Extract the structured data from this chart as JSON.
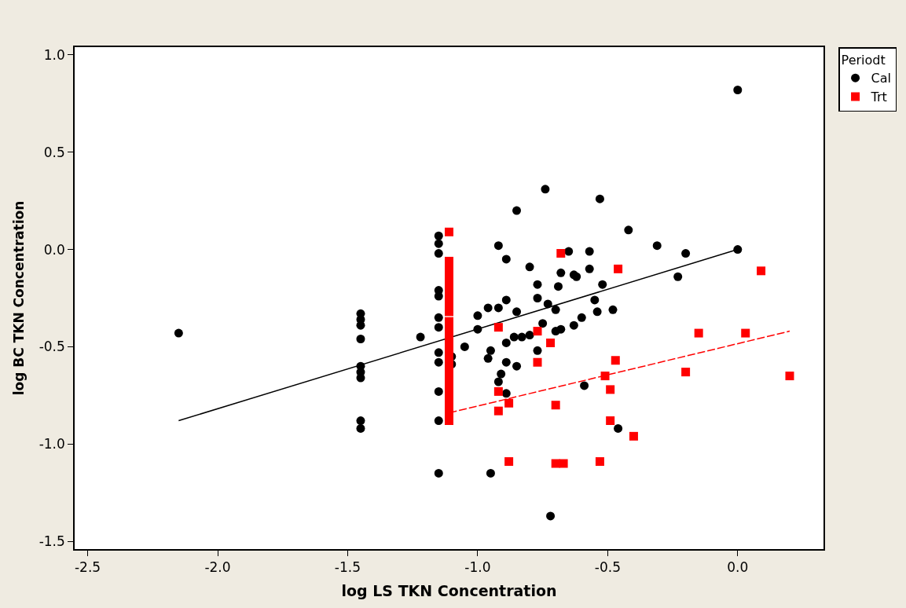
{
  "chart_data": {
    "type": "scatter",
    "xlabel": "log LS TKN Concentration",
    "ylabel": "log BC TKN Concentration",
    "legend_title": "Periodt",
    "xlim": [
      -2.55,
      0.33
    ],
    "ylim": [
      -1.54,
      1.04
    ],
    "xticks": [
      {
        "value": -2.5,
        "label": "-2.5"
      },
      {
        "value": -2.0,
        "label": "-2.0"
      },
      {
        "value": -1.5,
        "label": "-1.5"
      },
      {
        "value": -1.0,
        "label": "-1.0"
      },
      {
        "value": -0.5,
        "label": "-0.5"
      },
      {
        "value": 0.0,
        "label": "0.0"
      }
    ],
    "yticks": [
      {
        "value": -1.5,
        "label": "-1.5"
      },
      {
        "value": -1.0,
        "label": "-1.0"
      },
      {
        "value": -0.5,
        "label": "-0.5"
      },
      {
        "value": 0.0,
        "label": "0.0"
      },
      {
        "value": 0.5,
        "label": "0.5"
      },
      {
        "value": 1.0,
        "label": "1.0"
      }
    ],
    "legend": "top right",
    "series": [
      {
        "name": "Cal",
        "marker": "circle",
        "color": "#000000",
        "x": [
          -2.15,
          -1.45,
          -1.45,
          -1.45,
          -1.45,
          -1.45,
          -1.45,
          -1.45,
          -1.45,
          -1.45,
          -1.22,
          -1.15,
          -1.15,
          -1.15,
          -1.15,
          -1.15,
          -1.15,
          -1.15,
          -1.15,
          -1.15,
          -1.15,
          -1.15,
          -1.15,
          -1.1,
          -1.1,
          -1.05,
          -1.0,
          -1.0,
          -0.96,
          -0.92,
          -0.89,
          -0.85,
          -0.92,
          -0.89,
          -0.8,
          -0.77,
          -0.69,
          -0.68,
          -0.77,
          -0.73,
          -0.7,
          -0.75,
          -0.68,
          -0.7,
          -0.65,
          -0.63,
          -0.63,
          -0.89,
          -0.86,
          -0.83,
          -0.8,
          -0.77,
          -0.95,
          -0.96,
          -0.89,
          -0.85,
          -0.91,
          -0.92,
          -0.89,
          -0.95,
          -0.74,
          -0.85,
          -0.53,
          -0.42,
          -0.31,
          -0.57,
          -0.57,
          -0.62,
          -0.52,
          -0.55,
          -0.54,
          -0.48,
          -0.6,
          -0.59,
          -0.46,
          -0.72,
          0.0,
          0.0,
          -0.2,
          -0.23
        ],
        "values": [
          -0.43,
          -0.33,
          -0.36,
          -0.39,
          -0.46,
          -0.6,
          -0.63,
          -0.66,
          -0.88,
          -0.92,
          -0.45,
          0.07,
          0.03,
          -0.02,
          -0.21,
          -0.24,
          -0.35,
          -0.4,
          -0.53,
          -0.58,
          -0.73,
          -0.88,
          -1.15,
          -0.55,
          -0.59,
          -0.5,
          -0.34,
          -0.41,
          -0.3,
          -0.3,
          -0.26,
          -0.32,
          0.02,
          -0.05,
          -0.09,
          -0.18,
          -0.19,
          -0.12,
          -0.25,
          -0.28,
          -0.31,
          -0.38,
          -0.41,
          -0.42,
          -0.01,
          -0.13,
          -0.39,
          -0.48,
          -0.45,
          -0.45,
          -0.44,
          -0.52,
          -0.52,
          -0.56,
          -0.58,
          -0.6,
          -0.64,
          -0.68,
          -0.74,
          -1.15,
          0.31,
          0.2,
          0.26,
          0.1,
          0.02,
          -0.01,
          -0.1,
          -0.14,
          -0.18,
          -0.26,
          -0.32,
          -0.31,
          -0.35,
          -0.7,
          -0.92,
          -1.37,
          0.82,
          0.0,
          -0.02,
          -0.14
        ]
      },
      {
        "type": "line",
        "line_style": "solid",
        "color": "#000000",
        "x": [
          -2.15,
          0.0
        ],
        "values": [
          -0.88,
          0.0
        ]
      },
      {
        "name": "Trt",
        "marker": "square",
        "color": "#ff0000",
        "x": [
          -1.11,
          -1.11,
          -1.11,
          -1.11,
          -1.11,
          -1.11,
          -1.11,
          -1.11,
          -1.11,
          -1.11,
          -1.11,
          -1.11,
          -1.11,
          -1.11,
          -1.11,
          -1.11,
          -1.11,
          -1.11,
          -1.11,
          -1.11,
          -1.11,
          -1.11,
          -1.11,
          -0.92,
          -0.77,
          -0.72,
          -0.77,
          -0.92,
          -0.88,
          -0.92,
          -0.7,
          -0.88,
          -0.7,
          -0.67,
          -0.68,
          -0.46,
          -0.47,
          -0.51,
          -0.49,
          -0.49,
          -0.4,
          -0.53,
          -0.2,
          0.09,
          -0.15,
          0.03,
          0.2
        ],
        "values": [
          0.09,
          -0.06,
          -0.09,
          -0.12,
          -0.16,
          -0.2,
          -0.24,
          -0.28,
          -0.32,
          -0.37,
          -0.4,
          -0.44,
          -0.48,
          -0.52,
          -0.56,
          -0.6,
          -0.64,
          -0.68,
          -0.72,
          -0.76,
          -0.8,
          -0.84,
          -0.88,
          -0.4,
          -0.42,
          -0.48,
          -0.58,
          -0.73,
          -0.79,
          -0.83,
          -0.8,
          -1.09,
          -1.1,
          -1.1,
          -0.02,
          -0.1,
          -0.57,
          -0.65,
          -0.72,
          -0.88,
          -0.96,
          -1.09,
          -0.63,
          -0.11,
          -0.43,
          -0.43,
          -0.65
        ]
      },
      {
        "type": "line",
        "line_style": "dashed",
        "color": "#ff0000",
        "x": [
          -1.11,
          0.2
        ],
        "values": [
          -0.84,
          -0.42
        ]
      }
    ]
  }
}
